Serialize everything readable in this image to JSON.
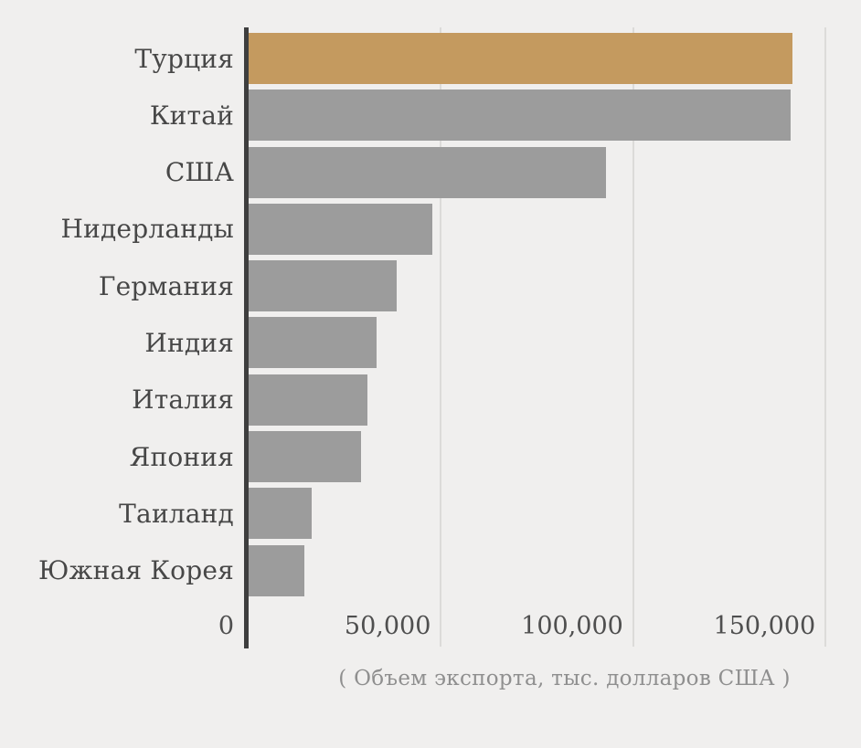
{
  "chart_data": {
    "type": "bar",
    "orientation": "horizontal",
    "title": "",
    "xlabel": "( Объем экспорта, тыс. долларов США )",
    "ylabel": "",
    "categories": [
      "Турция",
      "Китай",
      "США",
      "Нидерланды",
      "Германия",
      "Индия",
      "Италия",
      "Япония",
      "Таиланд",
      "Южная Корея"
    ],
    "values": [
      141300,
      140800,
      92800,
      47700,
      38400,
      33200,
      30800,
      29100,
      16300,
      14600
    ],
    "highlight_index": 0,
    "xlim": [
      0,
      154700
    ],
    "xticks": [
      {
        "value": 0,
        "label": "0"
      },
      {
        "value": 50000,
        "label": "50,000"
      },
      {
        "value": 100000,
        "label": "100,000"
      },
      {
        "value": 150000,
        "label": "150,000"
      }
    ],
    "grid": true,
    "legend_position": "none",
    "colors": {
      "highlight": "#c49a5f",
      "bar": "#9c9c9c",
      "axis": "#3e3e3e",
      "gridline": "#dcdbd9",
      "label": "#474747",
      "tick": "#4f4f4f",
      "caption": "#8f8f8f",
      "background": "#f0efee"
    }
  }
}
